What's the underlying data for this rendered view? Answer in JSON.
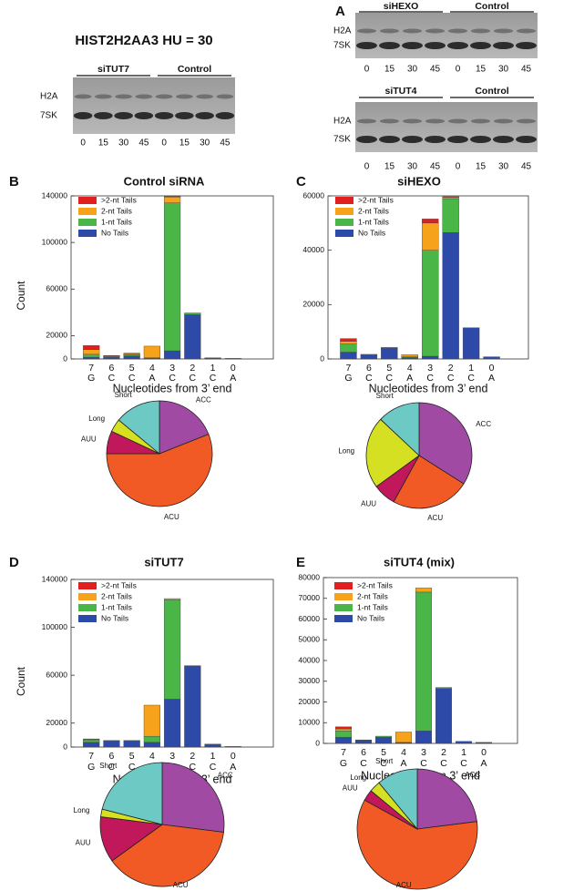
{
  "blots": [
    {
      "title": "HIST2H2AA3  HU = 30",
      "groups": [
        "siTUT7",
        "Control"
      ],
      "rows": [
        "H2A",
        "7SK"
      ],
      "lanes": [
        "0",
        "15",
        "30",
        "45",
        "0",
        "15",
        "30",
        "45"
      ]
    },
    {
      "panel": "A",
      "groups": [
        "siHEXO",
        "Control"
      ],
      "rows": [
        "H2A",
        "7SK"
      ],
      "lanes": [
        "0",
        "15",
        "30",
        "45",
        "0",
        "15",
        "30",
        "45"
      ]
    },
    {
      "groups": [
        "siTUT4",
        "Control"
      ],
      "rows": [
        "H2A",
        "7SK"
      ],
      "lanes": [
        "0",
        "15",
        "30",
        "45",
        "0",
        "15",
        "30",
        "45"
      ]
    }
  ],
  "chart_data": [
    {
      "type": "bar",
      "stacked": true,
      "panel": "B",
      "title": "Control siRNA",
      "y_label": "Count",
      "x_label": "Nucleotides from 3’ end",
      "categories": [
        "7",
        "6",
        "5",
        "4",
        "3",
        "2",
        "1",
        "0"
      ],
      "category_bases": [
        "G",
        "C",
        "C",
        "A",
        "C",
        "C",
        "C",
        "A"
      ],
      "ylim": [
        0,
        140000
      ],
      "yticks": [
        0,
        20000,
        60000,
        100000,
        140000
      ],
      "series": [
        {
          "name": "No Tails",
          "color": "#2e4aa8",
          "values": [
            1500,
            1500,
            2500,
            500,
            7000,
            38000,
            1000,
            500
          ]
        },
        {
          "name": "1-nt Tails",
          "color": "#4ab648",
          "values": [
            2500,
            500,
            1000,
            500,
            127000,
            1500,
            0,
            0
          ]
        },
        {
          "name": "2-nt Tails",
          "color": "#f7a21b",
          "values": [
            4000,
            500,
            1000,
            10000,
            5000,
            0,
            0,
            0
          ]
        },
        {
          "name": ">2-nt Tails",
          "color": "#e02020",
          "values": [
            3500,
            500,
            500,
            0,
            1000,
            0,
            0,
            0
          ]
        }
      ]
    },
    {
      "type": "pie",
      "categories": [
        "ACC",
        "ACU",
        "AUU",
        "Long",
        "Short"
      ],
      "values": [
        19,
        56,
        7,
        4,
        14
      ],
      "colors": [
        "#a04aa4",
        "#f15a24",
        "#c0185a",
        "#d4e021",
        "#6cc9c4"
      ]
    },
    {
      "type": "bar",
      "stacked": true,
      "panel": "C",
      "title": "siHEXO",
      "x_label": "Nucleotides from 3’ end",
      "categories": [
        "7",
        "6",
        "5",
        "4",
        "3",
        "2",
        "1",
        "0"
      ],
      "category_bases": [
        "G",
        "C",
        "C",
        "A",
        "C",
        "C",
        "C",
        "A"
      ],
      "ylim": [
        0,
        60000
      ],
      "yticks": [
        0,
        20000,
        40000,
        60000
      ],
      "series": [
        {
          "name": "No Tails",
          "color": "#2e4aa8",
          "values": [
            2500,
            1500,
            4000,
            500,
            1000,
            46500,
            11500,
            800
          ]
        },
        {
          "name": "1-nt Tails",
          "color": "#4ab648",
          "values": [
            3000,
            200,
            300,
            300,
            39000,
            12500,
            0,
            0
          ]
        },
        {
          "name": "2-nt Tails",
          "color": "#f7a21b",
          "values": [
            1000,
            0,
            0,
            800,
            10000,
            500,
            0,
            0
          ]
        },
        {
          "name": ">2-nt Tails",
          "color": "#e02020",
          "values": [
            1000,
            0,
            0,
            0,
            1500,
            200,
            0,
            0
          ]
        }
      ]
    },
    {
      "type": "pie",
      "categories": [
        "ACC",
        "ACU",
        "AUU",
        "Long",
        "Short"
      ],
      "values": [
        34,
        24,
        7,
        22,
        13
      ],
      "colors": [
        "#a04aa4",
        "#f15a24",
        "#c0185a",
        "#d4e021",
        "#6cc9c4"
      ]
    },
    {
      "type": "bar",
      "stacked": true,
      "panel": "D",
      "title": "siTUT7",
      "y_label": "Count",
      "x_label": "Nucleotides from 3’ end",
      "categories": [
        "7",
        "6",
        "5",
        "4",
        "3",
        "2",
        "1",
        "0"
      ],
      "category_bases": [
        "G",
        "C",
        "C",
        "A",
        "C",
        "C",
        "C",
        "A"
      ],
      "ylim": [
        0,
        140000
      ],
      "yticks": [
        0,
        20000,
        60000,
        100000,
        140000
      ],
      "series": [
        {
          "name": "No Tails",
          "color": "#2e4aa8",
          "values": [
            4000,
            5500,
            5500,
            4000,
            40000,
            68000,
            2500,
            500
          ]
        },
        {
          "name": "1-nt Tails",
          "color": "#4ab648",
          "values": [
            2000,
            0,
            0,
            5000,
            83000,
            0,
            0,
            0
          ]
        },
        {
          "name": "2-nt Tails",
          "color": "#f7a21b",
          "values": [
            500,
            0,
            0,
            26000,
            1000,
            0,
            0,
            0
          ]
        },
        {
          "name": ">2-nt Tails",
          "color": "#e02020",
          "values": [
            300,
            0,
            0,
            0,
            0,
            0,
            0,
            0
          ]
        }
      ]
    },
    {
      "type": "pie",
      "categories": [
        "ACC",
        "ACU",
        "AUU",
        "Long",
        "Short"
      ],
      "values": [
        27,
        38,
        12,
        2,
        21
      ],
      "colors": [
        "#a04aa4",
        "#f15a24",
        "#c0185a",
        "#d4e021",
        "#6cc9c4"
      ]
    },
    {
      "type": "bar",
      "stacked": true,
      "panel": "E",
      "title": "siTUT4 (mix)",
      "x_label": "Nucleotides from 3’ end",
      "categories": [
        "7",
        "6",
        "5",
        "4",
        "3",
        "2",
        "1",
        "0"
      ],
      "category_bases": [
        "G",
        "C",
        "C",
        "A",
        "C",
        "C",
        "C",
        "A"
      ],
      "ylim": [
        0,
        80000
      ],
      "yticks": [
        0,
        10000,
        20000,
        30000,
        40000,
        50000,
        60000,
        70000,
        80000
      ],
      "series": [
        {
          "name": "No Tails",
          "color": "#2e4aa8",
          "values": [
            3000,
            1500,
            3000,
            500,
            6000,
            26500,
            1000,
            500
          ]
        },
        {
          "name": "1-nt Tails",
          "color": "#4ab648",
          "values": [
            3000,
            200,
            500,
            0,
            67000,
            500,
            0,
            0
          ]
        },
        {
          "name": "2-nt Tails",
          "color": "#f7a21b",
          "values": [
            1000,
            0,
            0,
            5000,
            2000,
            0,
            0,
            0
          ]
        },
        {
          "name": ">2-nt Tails",
          "color": "#e02020",
          "values": [
            1000,
            0,
            0,
            0,
            0,
            0,
            0,
            0
          ]
        }
      ]
    },
    {
      "type": "pie",
      "categories": [
        "ACC",
        "ACU",
        "AUU",
        "Long",
        "Short"
      ],
      "values": [
        23,
        60,
        3,
        3,
        11
      ],
      "colors": [
        "#a04aa4",
        "#f15a24",
        "#c0185a",
        "#d4e021",
        "#6cc9c4"
      ]
    }
  ]
}
